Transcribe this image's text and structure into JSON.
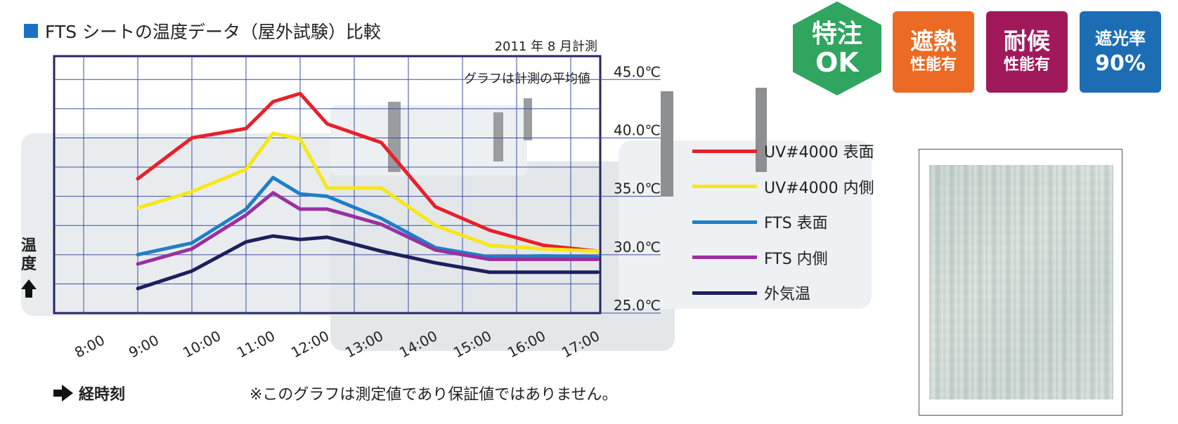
{
  "title": "FTS シートの温度データ（屋外試験）比較",
  "badges": {
    "tokuchu": {
      "line1": "特注",
      "line2": "OK",
      "color": "#2fa55f"
    },
    "shanetsu": {
      "line1": "遮熱",
      "line2": "性能有",
      "color": "#ec6a23"
    },
    "taiko": {
      "line1": "耐候",
      "line2": "性能有",
      "color": "#a1195b"
    },
    "shako": {
      "line1": "遮光率",
      "line2": "90%",
      "color": "#1d6db5"
    }
  },
  "note": "※このグラフは測定値であり保証値ではありません。",
  "time_axis_label": "経時刻",
  "temp_axis_label": "温度",
  "chart_data": {
    "type": "line",
    "title": "FTS シートの温度データ（屋外試験）比較",
    "subtitle": "2011 年 8 月計測",
    "annotation": "グラフは計測の平均値",
    "xlabel": "経時刻",
    "ylabel": "温度",
    "x": [
      "8:00",
      "8:30",
      "9:00",
      "9:30",
      "10:00",
      "10:30",
      "11:00",
      "11:30",
      "12:00",
      "12:30",
      "13:00",
      "13:30",
      "14:00",
      "14:30",
      "15:00",
      "15:30",
      "16:00",
      "16:30",
      "17:00",
      "17:30"
    ],
    "x_tick_labels": [
      "8:00",
      "9:00",
      "10:00",
      "11:00",
      "12:00",
      "13:00",
      "14:00",
      "15:00",
      "16:00",
      "17:00"
    ],
    "y_tick_labels": [
      "45.0℃",
      "40.0℃",
      "35.0℃",
      "30.0℃",
      "25.0℃"
    ],
    "y_ticks": [
      45,
      40,
      35,
      30,
      25
    ],
    "ylim": [
      25,
      47
    ],
    "grid": true,
    "legend_position": "right",
    "series": [
      {
        "name": "UV#4000 表面",
        "color": "#e8202a",
        "x": [
          "9:00",
          "10:00",
          "11:00",
          "11:30",
          "12:00",
          "12:30",
          "13:30",
          "14:30",
          "15:30",
          "16:30",
          "17:30"
        ],
        "values": [
          36.5,
          40.0,
          40.8,
          43.1,
          43.8,
          41.2,
          39.6,
          34.1,
          32.1,
          30.8,
          30.3
        ]
      },
      {
        "name": "UV#4000 内側",
        "color": "#f6e718",
        "x": [
          "9:00",
          "10:00",
          "11:00",
          "11:30",
          "12:00",
          "12:30",
          "13:30",
          "14:30",
          "15:30",
          "16:30",
          "17:30"
        ],
        "values": [
          34.0,
          35.4,
          37.3,
          40.4,
          39.9,
          35.7,
          35.7,
          32.5,
          30.8,
          30.5,
          30.3
        ]
      },
      {
        "name": "FTS 表面",
        "color": "#1f7fc6",
        "x": [
          "9:00",
          "10:00",
          "11:00",
          "11:30",
          "12:00",
          "12:30",
          "13:30",
          "14:30",
          "15:30",
          "16:30",
          "17:30"
        ],
        "values": [
          30.0,
          31.0,
          33.9,
          36.6,
          35.2,
          35.0,
          33.1,
          30.6,
          29.8,
          29.9,
          29.8
        ]
      },
      {
        "name": "FTS 内側",
        "color": "#9a30a0",
        "x": [
          "9:00",
          "10:00",
          "11:00",
          "11:30",
          "12:00",
          "12:30",
          "13:30",
          "14:30",
          "15:30",
          "16:30",
          "17:30"
        ],
        "values": [
          29.2,
          30.5,
          33.4,
          35.3,
          33.9,
          33.9,
          32.6,
          30.4,
          29.6,
          29.6,
          29.6
        ]
      },
      {
        "name": "外気温",
        "color": "#1d1f5e",
        "x": [
          "9:00",
          "10:00",
          "11:00",
          "11:30",
          "12:00",
          "12:30",
          "13:30",
          "14:30",
          "15:30",
          "16:30",
          "17:30"
        ],
        "values": [
          27.1,
          28.6,
          31.1,
          31.6,
          31.3,
          31.5,
          30.3,
          29.3,
          28.5,
          28.5,
          28.5
        ]
      }
    ]
  }
}
